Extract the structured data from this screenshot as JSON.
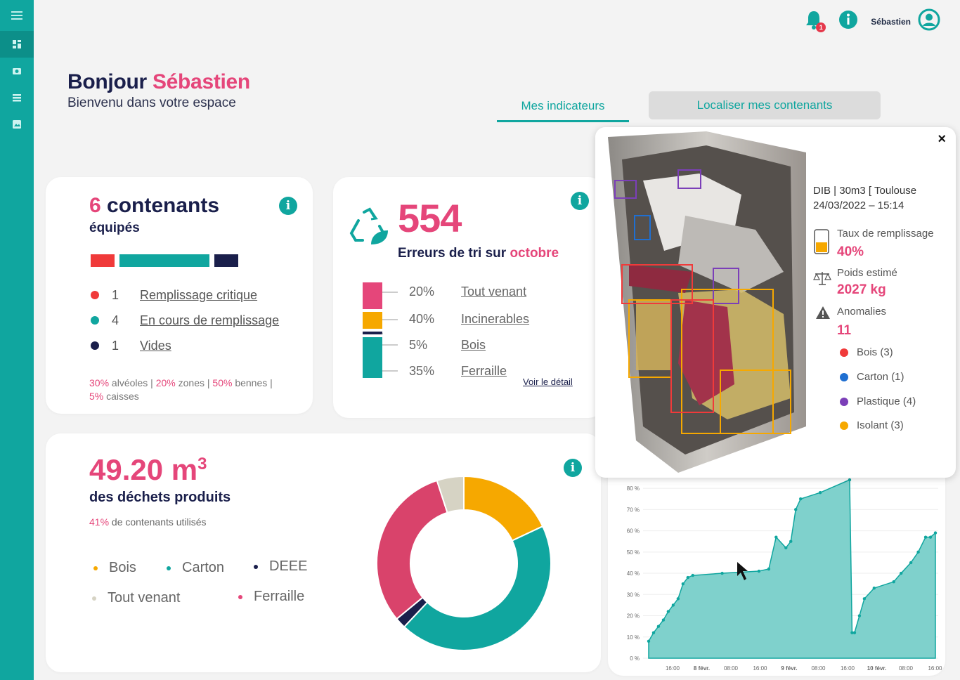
{
  "user": {
    "name": "Sébastien",
    "notifications": "1"
  },
  "greeting": {
    "hello": "Bonjour",
    "name": "Sébastien",
    "welcome": "Bienvenu dans votre espace"
  },
  "tabs": {
    "indicators": "Mes indicateurs",
    "locate": "Localiser mes contenants"
  },
  "containers": {
    "count": "6",
    "title": "contenants",
    "subtitle": "équipés",
    "legend": [
      {
        "count": "1",
        "label": "Remplissage critique",
        "color": "#f03a3a"
      },
      {
        "count": "4",
        "label": "En cours de remplissage",
        "color": "#10a69f"
      },
      {
        "count": "1",
        "label": "Vides",
        "color": "#1a1f4b"
      }
    ],
    "footer": {
      "p1": "30%",
      "t1": " alvéoles | ",
      "p2": "20%",
      "t2": " zones | ",
      "p3": "50%",
      "t3": " bennes | ",
      "p4": "5%",
      "t4": " caisses"
    }
  },
  "errors": {
    "count": "554",
    "label": "Erreurs de tri sur ",
    "month": "octobre",
    "detail_link": "Voir le détail",
    "rows": [
      {
        "pct": "20%",
        "label": "Tout venant",
        "color": "#e5467a"
      },
      {
        "pct": "40%",
        "label": "Incinerables",
        "color": "#f6a800"
      },
      {
        "pct": "5%",
        "label": "Bois",
        "color": "#1a1f4b"
      },
      {
        "pct": "35%",
        "label": "Ferraille",
        "color": "#10a69f"
      }
    ]
  },
  "waste": {
    "amount": "49.20 m",
    "exp": "3",
    "subtitle": "des déchets produits",
    "used_pct": "41%",
    "used_label": " de contenants utilisés",
    "legend": [
      {
        "label": "Bois",
        "color": "#f6a800"
      },
      {
        "label": "Carton",
        "color": "#10a69f"
      },
      {
        "label": "DEEE",
        "color": "#1a1f4b"
      },
      {
        "label": "Tout venant",
        "color": "#d6d3c4"
      },
      {
        "label": "Ferraille",
        "color": "#e5467a"
      }
    ]
  },
  "chart_data": {
    "type": "pie",
    "categories": [
      "Bois",
      "Carton",
      "DEEE",
      "Ferraille",
      "Tout venant"
    ],
    "values": [
      18,
      44,
      2,
      31,
      5
    ],
    "colors": [
      "#f6a800",
      "#10a69f",
      "#1a1f4b",
      "#d9436b",
      "#d6d3c4"
    ]
  },
  "fill_chart": {
    "type": "area",
    "yticks": [
      "0 %",
      "10 %",
      "20 %",
      "30 %",
      "40 %",
      "50 %",
      "60 %",
      "70 %",
      "80 %"
    ],
    "xticks": [
      "16:00",
      "8 févr.",
      "08:00",
      "16:00",
      "9 févr.",
      "08:00",
      "16:00",
      "10 févr.",
      "08:00",
      "16:00"
    ],
    "points": [
      [
        0,
        8
      ],
      [
        2,
        12
      ],
      [
        4,
        15
      ],
      [
        6,
        18
      ],
      [
        8,
        22
      ],
      [
        10,
        25
      ],
      [
        12,
        28
      ],
      [
        14,
        35
      ],
      [
        16,
        38
      ],
      [
        18,
        39
      ],
      [
        30,
        40
      ],
      [
        45,
        41
      ],
      [
        49,
        42
      ],
      [
        52,
        57
      ],
      [
        56,
        52
      ],
      [
        58,
        55
      ],
      [
        60,
        70
      ],
      [
        62,
        75
      ],
      [
        70,
        78
      ],
      [
        82,
        84
      ],
      [
        83,
        12
      ],
      [
        84,
        12
      ],
      [
        86,
        20
      ],
      [
        88,
        28
      ],
      [
        92,
        33
      ],
      [
        100,
        36
      ],
      [
        103,
        40
      ],
      [
        107,
        45
      ],
      [
        110,
        50
      ],
      [
        113,
        57
      ],
      [
        115,
        57
      ],
      [
        117,
        59
      ]
    ],
    "color": "#10a69f"
  },
  "popup": {
    "close": "×",
    "title": "DIB | 30m3 [ Toulouse",
    "datetime": "24/03/2022 – 15:14",
    "fill_label": "Taux de remplissage",
    "fill_value": "40%",
    "weight_label": "Poids estimé",
    "weight_value": "2027 kg",
    "anomalies_label": "Anomalies",
    "anomalies_value": "11",
    "anomalies": [
      {
        "label": "Bois (3)",
        "color": "#f03a3a"
      },
      {
        "label": "Carton (1)",
        "color": "#1f6fd1"
      },
      {
        "label": "Plastique (4)",
        "color": "#7b3fb8"
      },
      {
        "label": "Isolant (3)",
        "color": "#f6a800"
      }
    ],
    "boxes": [
      "Plastique",
      "Plastique",
      "Carton",
      "Plastique",
      "Isolant",
      "bois",
      "Isolant",
      "Isolant",
      "bois"
    ]
  }
}
